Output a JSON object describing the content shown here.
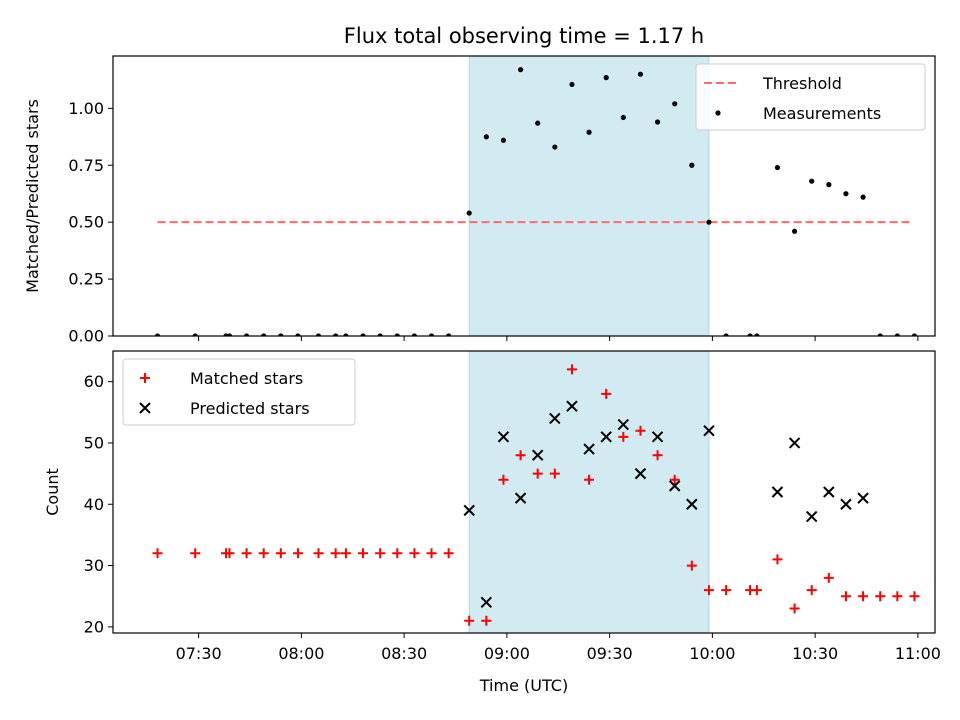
{
  "chart_data": {
    "title": "Flux total observing time = 1.17 h",
    "xlabel": "Time (UTC)",
    "x_unit": "UTC time of day",
    "xlim": [
      "07:05",
      "11:05"
    ],
    "xticks": [
      "07:30",
      "08:00",
      "08:30",
      "09:00",
      "09:30",
      "10:00",
      "10:30",
      "11:00"
    ],
    "highlight": {
      "x_start": "08:49",
      "x_end": "09:59",
      "color": "#add8e6"
    },
    "panels": [
      {
        "type": "scatter",
        "ylabel": "Matched/Predicted stars",
        "ylim": [
          0,
          1.23
        ],
        "yticks": [
          "0.00",
          "0.25",
          "0.50",
          "0.75",
          "1.00"
        ],
        "legend_position": "upper-right",
        "series": [
          {
            "name": "Threshold",
            "kind": "line",
            "style": "dashed",
            "color": "#ff6b6b",
            "x": [
              "07:18",
              "10:58"
            ],
            "y": [
              0.5,
              0.5
            ]
          },
          {
            "name": "Measurements",
            "kind": "scatter",
            "marker": "dot",
            "color": "#000000",
            "x": [
              "07:18",
              "07:29",
              "07:38",
              "07:39",
              "07:44",
              "07:49",
              "07:54",
              "07:59",
              "08:05",
              "08:10",
              "08:13",
              "08:18",
              "08:23",
              "08:28",
              "08:33",
              "08:38",
              "08:43",
              "08:49",
              "08:54",
              "08:59",
              "09:04",
              "09:09",
              "09:14",
              "09:19",
              "09:24",
              "09:29",
              "09:34",
              "09:39",
              "09:44",
              "09:49",
              "09:54",
              "09:59",
              "10:04",
              "10:11",
              "10:13",
              "10:19",
              "10:24",
              "10:29",
              "10:34",
              "10:39",
              "10:44",
              "10:49",
              "10:54",
              "10:59"
            ],
            "y": [
              0,
              0,
              0,
              0,
              0,
              0,
              0,
              0,
              0,
              0,
              0,
              0,
              0,
              0,
              0,
              0,
              0,
              0.54,
              0.875,
              0.86,
              1.17,
              0.935,
              0.83,
              1.105,
              0.895,
              1.135,
              0.96,
              1.15,
              0.94,
              1.02,
              0.75,
              0.5,
              0,
              0,
              0,
              0.74,
              0.46,
              0.68,
              0.665,
              0.625,
              0.61,
              0,
              0,
              0
            ]
          }
        ]
      },
      {
        "type": "scatter",
        "ylabel": "Count",
        "ylim": [
          19,
          65
        ],
        "yticks": [
          "20",
          "30",
          "40",
          "50",
          "60"
        ],
        "legend_position": "upper-left",
        "series": [
          {
            "name": "Matched stars",
            "kind": "scatter",
            "marker": "plus",
            "color": "#ff0000",
            "x": [
              "07:18",
              "07:29",
              "07:38",
              "07:39",
              "07:44",
              "07:49",
              "07:54",
              "07:59",
              "08:05",
              "08:10",
              "08:13",
              "08:18",
              "08:23",
              "08:28",
              "08:33",
              "08:38",
              "08:43",
              "08:49",
              "08:54",
              "08:59",
              "09:04",
              "09:09",
              "09:14",
              "09:19",
              "09:24",
              "09:29",
              "09:34",
              "09:39",
              "09:44",
              "09:49",
              "09:54",
              "09:59",
              "10:04",
              "10:11",
              "10:13",
              "10:19",
              "10:24",
              "10:29",
              "10:34",
              "10:39",
              "10:44",
              "10:49",
              "10:54",
              "10:59"
            ],
            "y": [
              32,
              32,
              32,
              32,
              32,
              32,
              32,
              32,
              32,
              32,
              32,
              32,
              32,
              32,
              32,
              32,
              32,
              21,
              21,
              44,
              48,
              45,
              45,
              62,
              44,
              58,
              51,
              52,
              48,
              44,
              30,
              26,
              26,
              26,
              26,
              31,
              23,
              26,
              28,
              25,
              25,
              25,
              25,
              25
            ]
          },
          {
            "name": "Predicted stars",
            "kind": "scatter",
            "marker": "cross",
            "color": "#000000",
            "x": [
              "08:49",
              "08:54",
              "08:59",
              "09:04",
              "09:09",
              "09:14",
              "09:19",
              "09:24",
              "09:29",
              "09:34",
              "09:39",
              "09:44",
              "09:49",
              "09:54",
              "09:59",
              "10:19",
              "10:24",
              "10:29",
              "10:34",
              "10:39",
              "10:44"
            ],
            "y": [
              39,
              24,
              51,
              41,
              48,
              54,
              56,
              49,
              51,
              53,
              45,
              51,
              43,
              40,
              52,
              42,
              50,
              38,
              42,
              40,
              41
            ]
          }
        ]
      }
    ]
  }
}
